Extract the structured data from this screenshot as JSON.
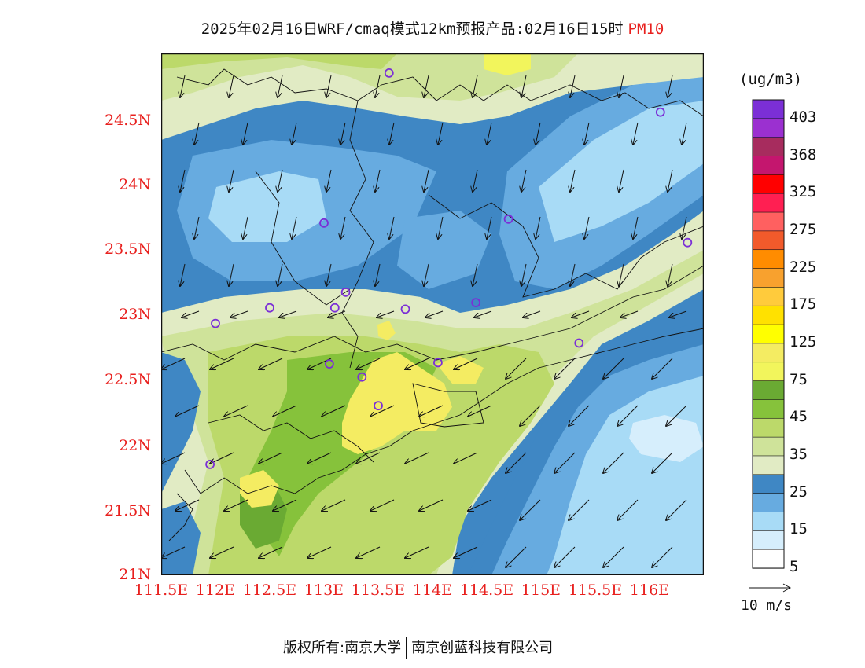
{
  "title": {
    "main": "2025年02月16日WRF/cmaq模式12km预报产品:02月16日15时",
    "pollutant": "PM10"
  },
  "map": {
    "lon_range": [
      111.5,
      116.5
    ],
    "lat_range": [
      21.0,
      25.0
    ],
    "x_ticks": [
      "111.5E",
      "112E",
      "112.5E",
      "113E",
      "113.5E",
      "114E",
      "114.5E",
      "115E",
      "115.5E",
      "116E"
    ],
    "y_ticks": [
      "21N",
      "21.5N",
      "22N",
      "22.5N",
      "23N",
      "23.5N",
      "24N",
      "24.5N"
    ],
    "stations": [
      [
        113.6,
        24.85
      ],
      [
        116.1,
        24.55
      ],
      [
        113.0,
        23.7
      ],
      [
        114.7,
        23.73
      ],
      [
        116.35,
        23.55
      ],
      [
        113.2,
        23.17
      ],
      [
        113.1,
        23.05
      ],
      [
        112.5,
        23.05
      ],
      [
        112.0,
        22.93
      ],
      [
        113.75,
        23.04
      ],
      [
        114.4,
        23.09
      ],
      [
        115.35,
        22.78
      ],
      [
        113.05,
        22.62
      ],
      [
        114.05,
        22.63
      ],
      [
        113.35,
        22.52
      ],
      [
        113.5,
        22.3
      ],
      [
        111.95,
        21.85
      ]
    ]
  },
  "colorbar": {
    "unit": "(ug/m3)",
    "labels": [
      "403",
      "368",
      "325",
      "275",
      "225",
      "175",
      "125",
      "75",
      "45",
      "35",
      "25",
      "15",
      "5"
    ],
    "colors": [
      "#7b2fd6",
      "#9b30d0",
      "#a72c5e",
      "#c4166e",
      "#ff0000",
      "#ff1f52",
      "#ff6060",
      "#f25a2b",
      "#ff8c00",
      "#f8a12e",
      "#ffcb3c",
      "#ffe100",
      "#ffff00",
      "#f4ec62",
      "#f2f55c",
      "#6aaa33",
      "#86c23b",
      "#bcd96a",
      "#cfe39a",
      "#e1ebc4",
      "#3f87c4",
      "#67abe0",
      "#a8dbf6",
      "#d6eefc",
      "#ffffff"
    ]
  },
  "reference_vector": {
    "label": "10 m/s"
  },
  "footer": {
    "left": "版权所有:南京大学",
    "right": "南京创蓝科技有限公司"
  }
}
